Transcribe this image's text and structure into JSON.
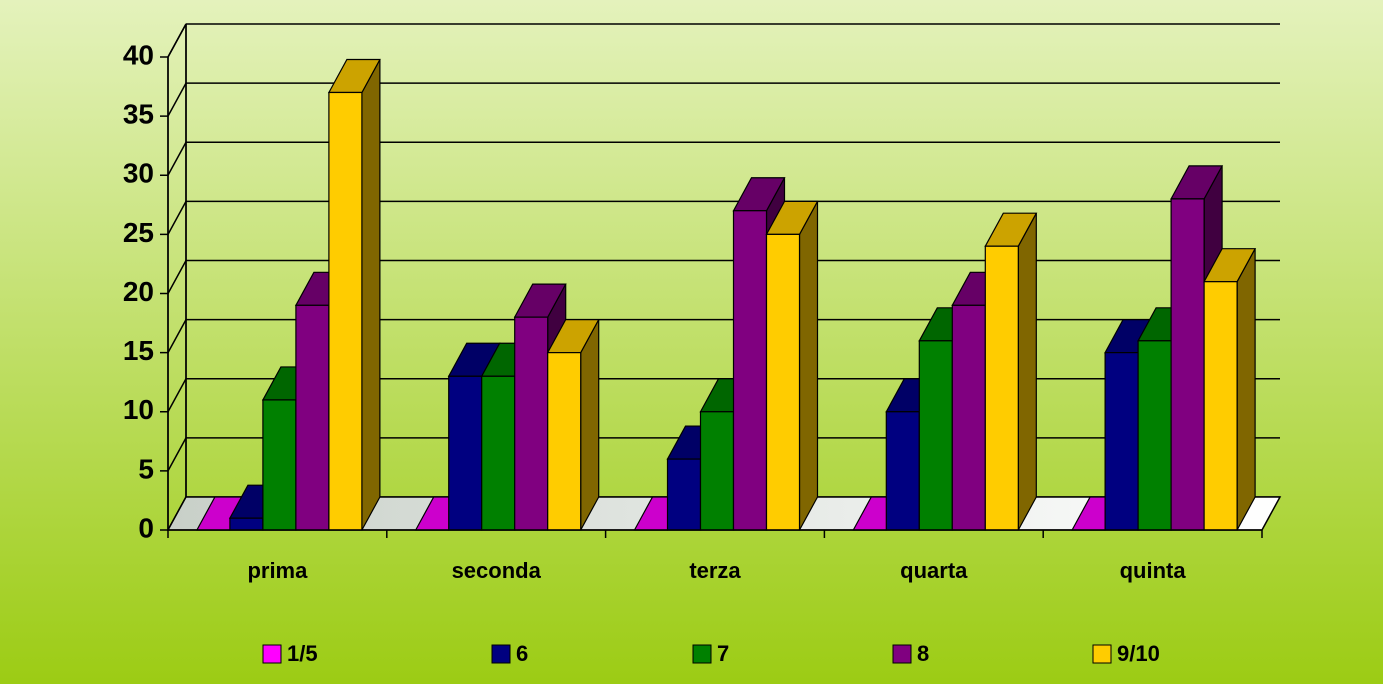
{
  "chart_data": {
    "type": "bar3d",
    "categories": [
      "prima",
      "seconda",
      "terza",
      "quarta",
      "quinta"
    ],
    "series": [
      {
        "name": "1/5",
        "color": "#ff00ff",
        "values": [
          0,
          0,
          0,
          0,
          0
        ]
      },
      {
        "name": "6",
        "color": "#000080",
        "values": [
          1,
          13,
          6,
          10,
          15
        ]
      },
      {
        "name": "7",
        "color": "#008000",
        "values": [
          11,
          13,
          10,
          16,
          16
        ]
      },
      {
        "name": "8",
        "color": "#800080",
        "values": [
          19,
          18,
          27,
          19,
          28
        ]
      },
      {
        "name": "9/10",
        "color": "#ffcc00",
        "values": [
          37,
          15,
          25,
          24,
          21
        ]
      }
    ],
    "ylim": [
      0,
      40
    ],
    "yticks": [
      0,
      5,
      10,
      15,
      20,
      25,
      30,
      35,
      40
    ],
    "grid": true,
    "legend": "bottom"
  }
}
